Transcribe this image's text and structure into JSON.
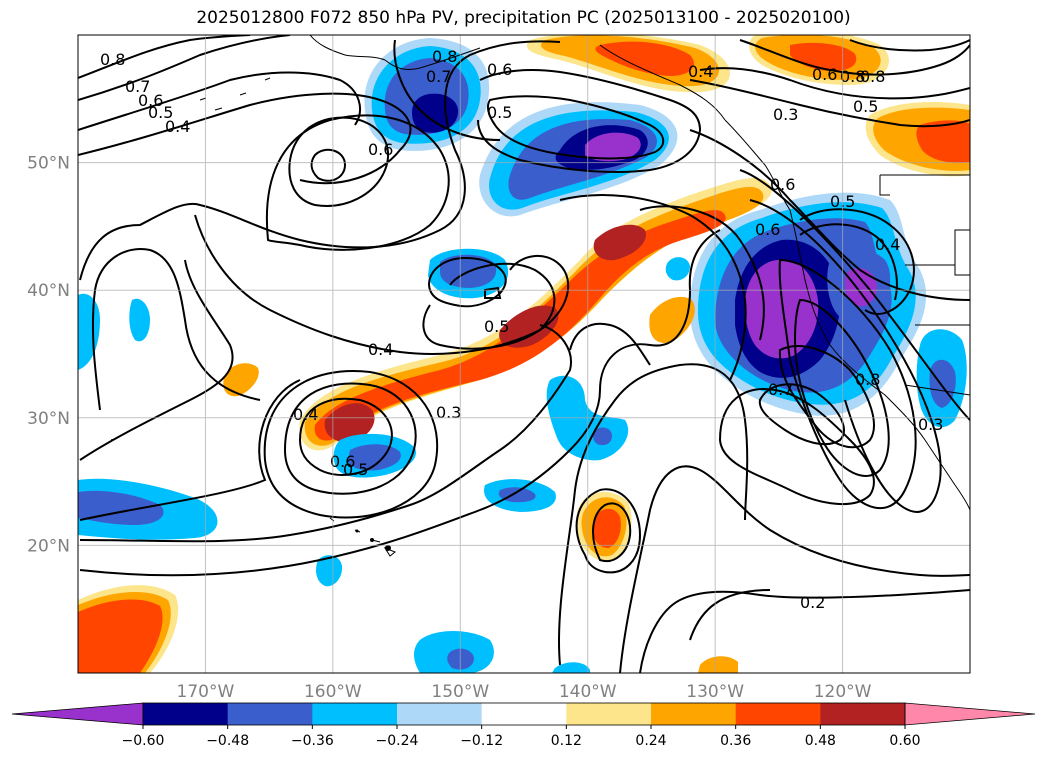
{
  "title": "2025012800 F072 850 hPa PV, precipitation PC (2025013100 - 2025020100)",
  "chart_data": {
    "type": "heatmap",
    "title": "2025012800 F072 850 hPa PV, precipitation PC (2025013100 - 2025020100)",
    "projection": "map, North Pacific",
    "lon_range": [
      -180,
      -110
    ],
    "lat_range": [
      10,
      60
    ],
    "grid": true,
    "x_ticks": [
      {
        "lon": -170,
        "label": "170°W"
      },
      {
        "lon": -160,
        "label": "160°W"
      },
      {
        "lon": -150,
        "label": "150°W"
      },
      {
        "lon": -140,
        "label": "140°W"
      },
      {
        "lon": -130,
        "label": "130°W"
      },
      {
        "lon": -120,
        "label": "120°W"
      }
    ],
    "y_ticks": [
      {
        "lat": 20,
        "label": "20°N"
      },
      {
        "lat": 30,
        "label": "30°N"
      },
      {
        "lat": 40,
        "label": "40°N"
      },
      {
        "lat": 50,
        "label": "50°N"
      }
    ],
    "colorbar": {
      "orientation": "horizontal",
      "extend": "both",
      "levels": [
        -0.6,
        -0.48,
        -0.36,
        -0.24,
        -0.12,
        0.12,
        0.24,
        0.36,
        0.48,
        0.6
      ],
      "tick_labels": [
        "−0.60",
        "−0.48",
        "−0.36",
        "−0.24",
        "−0.12",
        "0.12",
        "0.24",
        "0.36",
        "0.48",
        "0.60"
      ],
      "colors": [
        "#9932cc",
        "#00008b",
        "#3a5fcd",
        "#00bfff",
        "#add8f7",
        "#ffffff",
        "#fce58a",
        "#ffa500",
        "#ff4500",
        "#b22222",
        "#ff88aa"
      ]
    },
    "contour_labels": [
      "0.8",
      "0.7",
      "0.6",
      "0.5",
      "0.4",
      "0.8",
      "0.6",
      "0.7",
      "0.6",
      "0.5",
      "0.4",
      "0.8",
      "0.6",
      "0.8",
      "0.5",
      "0.3",
      "0.6",
      "0.5",
      "0.4",
      "0.6",
      "0.4",
      "0.5",
      "0.4",
      "0.3",
      "0.6",
      "0.5",
      "0.7",
      "0.8",
      "0.3",
      "0.2"
    ],
    "shaded_regions": [
      {
        "lon": -139,
        "lat": 52,
        "value": -0.6
      },
      {
        "lon": -125,
        "lat": 38,
        "value": -0.6
      },
      {
        "lon": -152,
        "lat": 54,
        "value": -0.48
      },
      {
        "lon": -150,
        "lat": 33,
        "value": 0.48
      },
      {
        "lon": -160,
        "lat": 30,
        "value": 0.48
      },
      {
        "lon": -140,
        "lat": 45,
        "value": 0.48
      },
      {
        "lon": -176,
        "lat": 16,
        "value": 0.36
      }
    ]
  }
}
